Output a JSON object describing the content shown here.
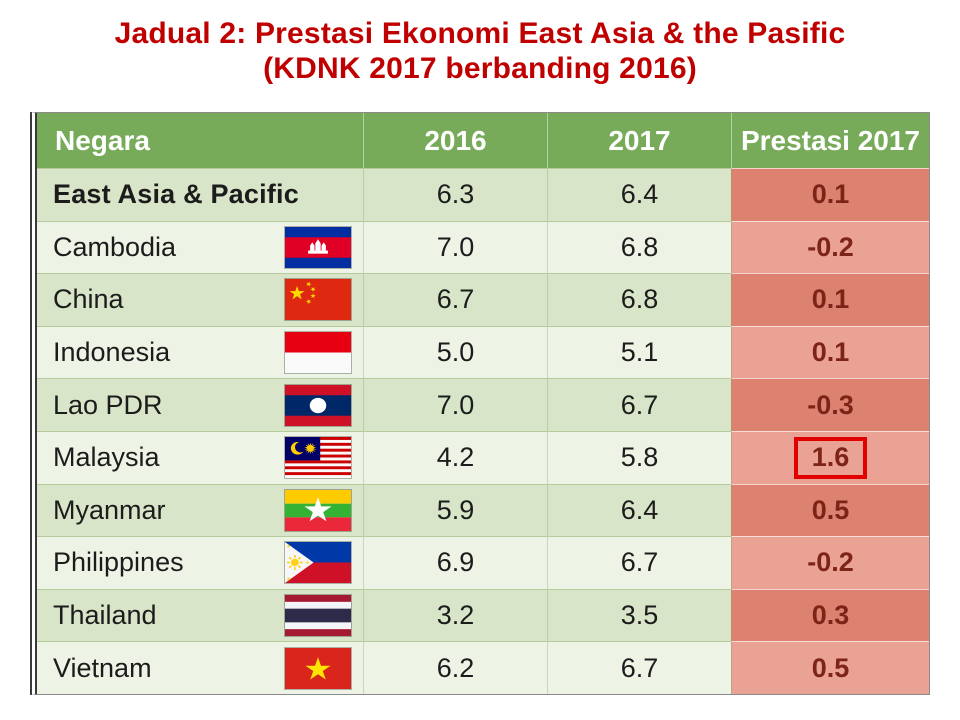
{
  "chart_data": {
    "type": "table",
    "title_line1": "Jadual 2: Prestasi Ekonomi East Asia & the Pasific",
    "title_line2": "(KDNK 2017 berbanding 2016)",
    "columns": [
      "Negara",
      "2016",
      "2017",
      "Prestasi 2017"
    ],
    "rows": [
      {
        "country": "East Asia & Pacific",
        "flag": "",
        "y2016": "6.3",
        "y2017": "6.4",
        "prestasi": "0.1",
        "bold": true,
        "highlight": false
      },
      {
        "country": "Cambodia",
        "flag": "cambodia",
        "y2016": "7.0",
        "y2017": "6.8",
        "prestasi": "-0.2",
        "bold": false,
        "highlight": false
      },
      {
        "country": "China",
        "flag": "china",
        "y2016": "6.7",
        "y2017": "6.8",
        "prestasi": "0.1",
        "bold": false,
        "highlight": false
      },
      {
        "country": "Indonesia",
        "flag": "indonesia",
        "y2016": "5.0",
        "y2017": "5.1",
        "prestasi": "0.1",
        "bold": false,
        "highlight": false
      },
      {
        "country": "Lao PDR",
        "flag": "laos",
        "y2016": "7.0",
        "y2017": "6.7",
        "prestasi": "-0.3",
        "bold": false,
        "highlight": false
      },
      {
        "country": "Malaysia",
        "flag": "malaysia",
        "y2016": "4.2",
        "y2017": "5.8",
        "prestasi": "1.6",
        "bold": false,
        "highlight": true
      },
      {
        "country": "Myanmar",
        "flag": "myanmar",
        "y2016": "5.9",
        "y2017": "6.4",
        "prestasi": "0.5",
        "bold": false,
        "highlight": false
      },
      {
        "country": "Philippines",
        "flag": "philippines",
        "y2016": "6.9",
        "y2017": "6.7",
        "prestasi": "-0.2",
        "bold": false,
        "highlight": false
      },
      {
        "country": "Thailand",
        "flag": "thailand",
        "y2016": "3.2",
        "y2017": "3.5",
        "prestasi": "0.3",
        "bold": false,
        "highlight": false
      },
      {
        "country": "Vietnam",
        "flag": "vietnam",
        "y2016": "6.2",
        "y2017": "6.7",
        "prestasi": "0.5",
        "bold": false,
        "highlight": false
      }
    ]
  },
  "colors": {
    "title_red": "#C00000",
    "header_green": "#77AB59",
    "row_green_dark": "#D9E5C8",
    "row_green_light": "#EDF3E5",
    "prestasi_dark": "#DD8271",
    "prestasi_light": "#E9A294",
    "prestasi_text": "#7E2318",
    "highlight_box_red": "#E00000"
  }
}
